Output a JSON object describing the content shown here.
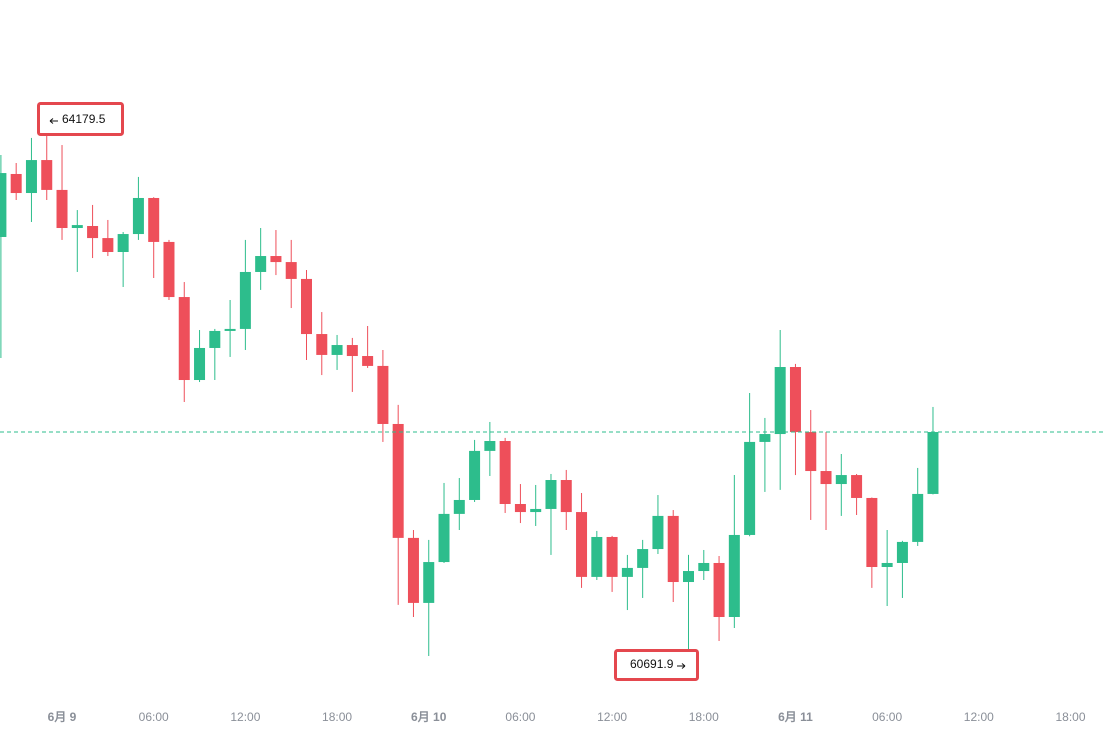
{
  "chart_data": {
    "type": "candlestick",
    "categories": [
      null,
      null,
      null,
      null,
      "6月 9",
      null,
      null,
      null,
      null,
      null,
      "06:00",
      null,
      null,
      null,
      null,
      null,
      "12:00",
      null,
      null,
      null,
      null,
      null,
      "18:00",
      null,
      null,
      null,
      null,
      null,
      "6月 10",
      null,
      null,
      null,
      null,
      null,
      "06:00",
      null,
      null,
      null,
      null,
      null,
      "12:00",
      null,
      null,
      null,
      null,
      null,
      "18:00",
      null,
      null,
      null,
      null,
      null,
      "6月 11",
      null,
      null,
      null,
      null,
      null,
      "06:00",
      null,
      null,
      null,
      null,
      null,
      "12:00",
      null,
      null,
      null,
      null,
      null,
      "18:00",
      null,
      null
    ],
    "open": [
      63443,
      63850,
      63727,
      63940,
      63747,
      63501,
      63514,
      63436,
      63346,
      63462,
      63695,
      63411,
      63055,
      62519,
      62726,
      62836,
      62849,
      63217,
      63320,
      63281,
      63172,
      62816,
      62681,
      62745,
      62674,
      62610,
      62235,
      61499,
      61079,
      61343,
      61654,
      61744,
      62061,
      62125,
      61718,
      61666,
      61686,
      61873,
      61666,
      61247,
      61505,
      61247,
      61305,
      61427,
      61641,
      61214,
      61285,
      61337,
      60988,
      61518,
      62119,
      62170,
      62603,
      62183,
      61931,
      61847,
      61905,
      61757,
      61311,
      61337,
      61473,
      61783,
      null,
      null,
      null,
      null,
      null,
      null,
      null,
      null,
      null,
      null,
      null
    ],
    "high": [
      63973,
      63921,
      64083,
      64179.5,
      64037,
      63617,
      63650,
      63553,
      63475,
      63831,
      63700,
      63424,
      63152,
      62842,
      62849,
      63036,
      63424,
      63501,
      63488,
      63424,
      63230,
      62958,
      62810,
      62791,
      62868,
      62713,
      62358,
      61550,
      61486,
      61854,
      61886,
      62132,
      62248,
      62145,
      61847,
      61841,
      61912,
      61938,
      61789,
      61544,
      61512,
      61389,
      61486,
      61776,
      61679,
      61389,
      61421,
      61382,
      61905,
      62435,
      62274,
      62842,
      62623,
      62325,
      62183,
      62041,
      61912,
      61760,
      61550,
      61480,
      61951,
      62345,
      null,
      null,
      null,
      null,
      null,
      null,
      null,
      null,
      null,
      null,
      null
    ],
    "low": [
      62661,
      63682,
      63540,
      63682,
      63424,
      63217,
      63307,
      63320,
      63120,
      63424,
      63178,
      63036,
      62377,
      62506,
      62519,
      62668,
      62713,
      63101,
      63197,
      62984,
      62648,
      62551,
      62584,
      62442,
      62597,
      62119,
      61066,
      60988,
      60736,
      61337,
      61550,
      61731,
      61899,
      61660,
      61595,
      61576,
      61389,
      61550,
      61176,
      61227,
      61150,
      61033,
      61111,
      61395,
      61085,
      60691.9,
      61227,
      60833,
      60917,
      61510,
      61796,
      61809,
      61905,
      61615,
      61550,
      61641,
      61647,
      61176,
      61059,
      61111,
      61447,
      61780,
      null,
      null,
      null,
      null,
      null,
      null,
      null,
      null,
      null,
      null,
      null
    ],
    "close": [
      63856,
      63727,
      63940,
      63747,
      63501,
      63520,
      63436,
      63346,
      63462,
      63695,
      63411,
      63055,
      62519,
      62726,
      62836,
      62849,
      63217,
      63320,
      63281,
      63172,
      62816,
      62681,
      62745,
      62674,
      62610,
      62235,
      61499,
      61079,
      61343,
      61654,
      61744,
      62061,
      62125,
      61718,
      61666,
      61686,
      61873,
      61666,
      61247,
      61505,
      61247,
      61305,
      61427,
      61641,
      61214,
      61285,
      61337,
      60988,
      61518,
      62119,
      62170,
      62603,
      62183,
      61931,
      61847,
      61905,
      61757,
      61311,
      61337,
      61473,
      61783,
      62183,
      null,
      null,
      null,
      null,
      null,
      null,
      null,
      null,
      null,
      null,
      null
    ],
    "up_color": "#2dbd8c",
    "down_color": "#ee4f5a",
    "ylim": [
      60258,
      64974
    ]
  }
}
